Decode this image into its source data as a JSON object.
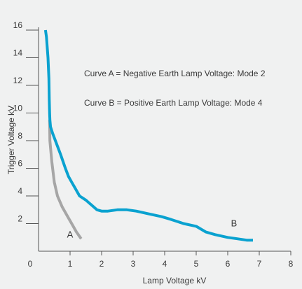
{
  "chart_data": {
    "type": "line",
    "xlabel": "Lamp Voltage kV",
    "ylabel": "Trigger Voltage kV",
    "xlim": [
      0,
      8
    ],
    "ylim": [
      0,
      16
    ],
    "x_ticks": [
      "0",
      "1",
      "2",
      "3",
      "4",
      "5",
      "6",
      "7",
      "8"
    ],
    "y_ticks": [
      "2",
      "4",
      "6",
      "8",
      "10",
      "12",
      "14",
      "16"
    ],
    "grid": false,
    "annotations": [
      "Curve A = Negative Earth Lamp Voltage: Mode 2",
      "Curve B = Positive Earth Lamp Voltage: Mode 4"
    ],
    "series": [
      {
        "name": "A",
        "color": "#a6a6a6",
        "x": [
          0.35,
          0.36,
          0.42,
          0.5,
          0.6,
          0.75,
          0.9,
          1.05,
          1.2,
          1.35
        ],
        "y": [
          9.5,
          8.0,
          6.5,
          5.0,
          4.0,
          3.2,
          2.6,
          2.0,
          1.4,
          0.9
        ]
      },
      {
        "name": "B",
        "color": "#0aa2d0",
        "x": [
          0.22,
          0.25,
          0.3,
          0.33,
          0.34,
          0.35,
          0.36,
          0.38,
          0.45,
          0.55,
          0.7,
          0.85,
          0.95,
          1.05,
          1.15,
          1.3,
          1.5,
          1.7,
          1.85,
          2.0,
          2.2,
          2.5,
          2.8,
          3.1,
          3.5,
          3.9,
          4.2,
          4.6,
          5.0,
          5.3,
          5.6,
          6.0,
          6.3,
          6.6,
          6.8
        ],
        "y": [
          16.0,
          15.5,
          14.0,
          12.5,
          11.0,
          10.0,
          9.5,
          9.0,
          8.5,
          7.9,
          7.0,
          6.0,
          5.4,
          5.0,
          4.6,
          4.0,
          3.7,
          3.3,
          3.0,
          2.9,
          2.9,
          3.0,
          3.0,
          2.9,
          2.7,
          2.5,
          2.3,
          2.0,
          1.8,
          1.4,
          1.2,
          1.0,
          0.9,
          0.8,
          0.8
        ]
      }
    ]
  }
}
